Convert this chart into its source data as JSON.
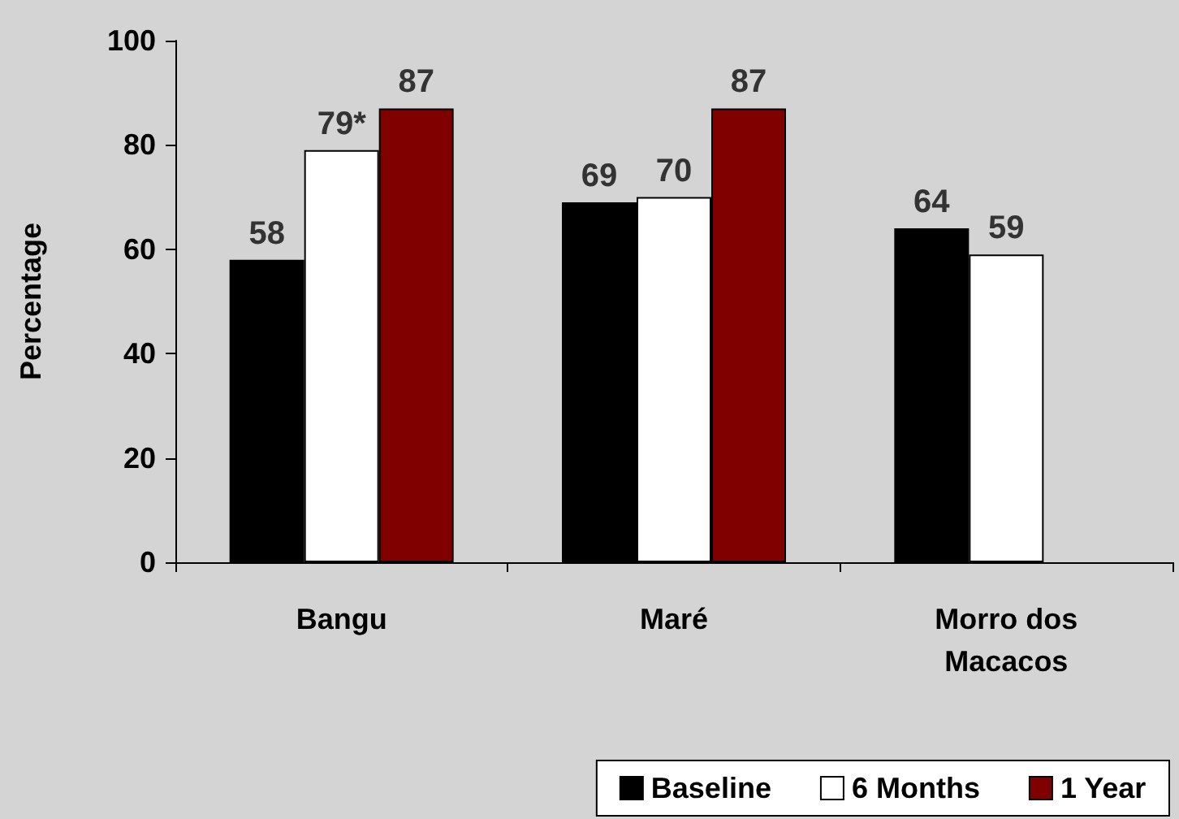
{
  "chart_data": {
    "type": "bar",
    "ylabel": "Percentage",
    "categories": [
      "Bangu",
      "Maré",
      "Morro dos\nMacacos"
    ],
    "series": [
      {
        "name": "Baseline",
        "color": "#000000",
        "values": [
          58,
          69,
          64
        ],
        "value_labels": [
          "58",
          "69",
          "64"
        ]
      },
      {
        "name": "6 Months",
        "color": "#ffffff",
        "values": [
          79,
          70,
          59
        ],
        "value_labels": [
          "79*",
          "70",
          "59"
        ]
      },
      {
        "name": "1 Year",
        "color": "#800000",
        "values": [
          87,
          87,
          null
        ],
        "value_labels": [
          "87",
          "87",
          null
        ]
      }
    ],
    "ylim": [
      0,
      100
    ],
    "yticks": [
      0,
      20,
      40,
      60,
      80,
      100
    ],
    "grid": false,
    "legend": "bottom right"
  }
}
